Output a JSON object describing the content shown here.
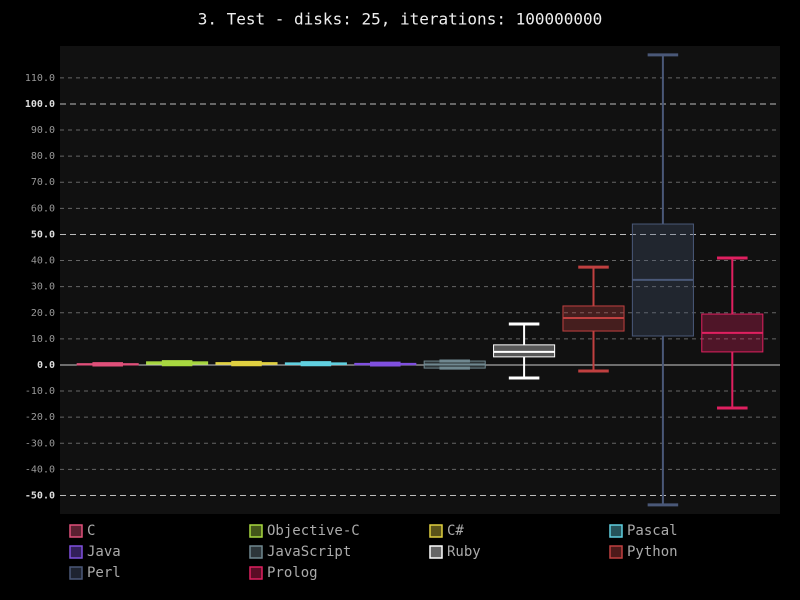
{
  "chart_data": {
    "type": "box",
    "title": "3. Test - disks: 25, iterations: 100000000",
    "ylim": [
      -57.1,
      122.2
    ],
    "yticks": [
      {
        "value": -50,
        "label": "-50.0"
      },
      {
        "value": -40,
        "label": "-40.0"
      },
      {
        "value": -30,
        "label": "-30.0"
      },
      {
        "value": -20,
        "label": "-20.0"
      },
      {
        "value": -10,
        "label": "-10.0"
      },
      {
        "value": 0,
        "label": "0.0"
      },
      {
        "value": 10,
        "label": "10.0"
      },
      {
        "value": 20,
        "label": "20.0"
      },
      {
        "value": 30,
        "label": "30.0"
      },
      {
        "value": 40,
        "label": "40.0"
      },
      {
        "value": 50,
        "label": "50.0"
      },
      {
        "value": 60,
        "label": "60.0"
      },
      {
        "value": 70,
        "label": "70.0"
      },
      {
        "value": 80,
        "label": "80.0"
      },
      {
        "value": 90,
        "label": "90.0"
      },
      {
        "value": 100,
        "label": "100.0"
      },
      {
        "value": 110,
        "label": "110.0"
      }
    ],
    "grid": true,
    "legend": "bottom",
    "series": [
      {
        "name": "C",
        "color": "#e0507a",
        "low": 0,
        "q1": 0,
        "median": 0.2,
        "q3": 0.5,
        "high": 0.5
      },
      {
        "name": "Objective-C",
        "color": "#a8d840",
        "low": 0.1,
        "q1": 0.3,
        "median": 0.7,
        "q3": 1.2,
        "high": 1.3
      },
      {
        "name": "C#",
        "color": "#e0d040",
        "low": 0.1,
        "q1": 0.3,
        "median": 0.5,
        "q3": 0.9,
        "high": 1.0
      },
      {
        "name": "Pascal",
        "color": "#60d0e0",
        "low": 0.1,
        "q1": 0.2,
        "median": 0.5,
        "q3": 0.8,
        "high": 0.9
      },
      {
        "name": "Java",
        "color": "#8050e0",
        "low": 0,
        "q1": 0.1,
        "median": 0.3,
        "q3": 0.6,
        "high": 0.7
      },
      {
        "name": "JavaScript",
        "color": "#708890",
        "low": -1.2,
        "q1": -1.2,
        "median": 0.2,
        "q3": 1.5,
        "high": 1.5
      },
      {
        "name": "Ruby",
        "color": "#ffffff",
        "low": -5.0,
        "q1": 3.1,
        "median": 5.0,
        "q3": 7.7,
        "high": 15.7
      },
      {
        "name": "Python",
        "color": "#c04040",
        "low": -2.3,
        "q1": 13.0,
        "median": 18.0,
        "q3": 22.6,
        "high": 37.5
      },
      {
        "name": "Perl",
        "color": "#4a5878",
        "low": -53.6,
        "q1": 11.1,
        "median": 32.6,
        "q3": 54.0,
        "high": 118.8
      },
      {
        "name": "Prolog",
        "color": "#e02060",
        "low": -16.5,
        "q1": 5.0,
        "median": 12.3,
        "q3": 19.5,
        "high": 41.0
      }
    ]
  }
}
